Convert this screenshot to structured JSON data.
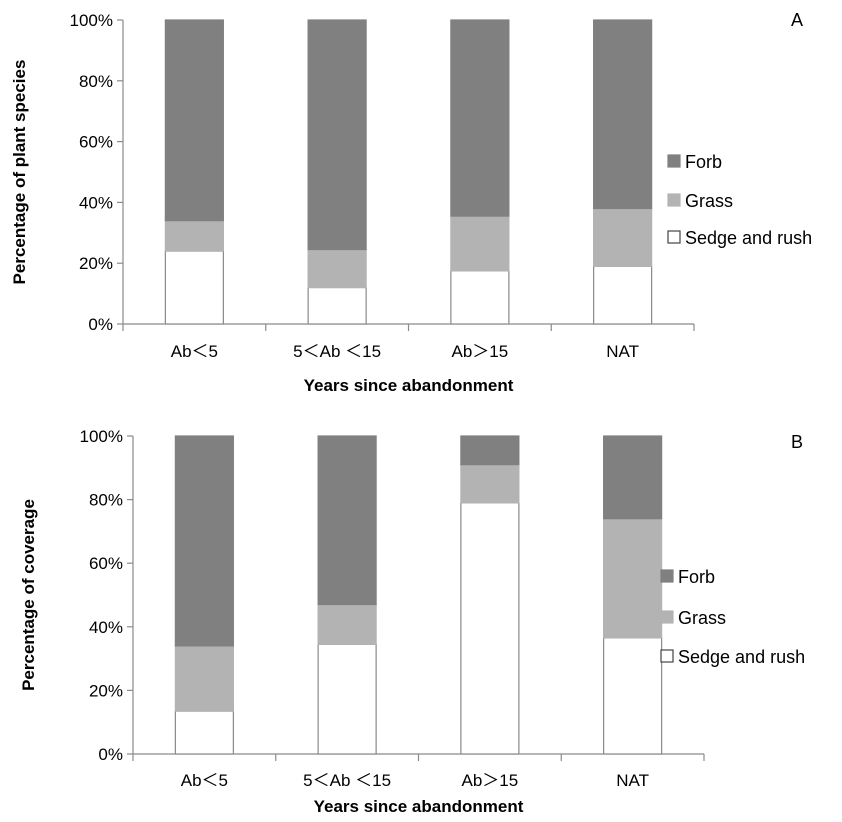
{
  "chart_data": [
    {
      "type": "bar",
      "stacked": true,
      "percent_axis": true,
      "panel_label": "A",
      "categories": [
        "Ab＜5",
        "5＜Ab ＜15",
        "Ab＞15",
        "NAT"
      ],
      "xlabel": "Years since abandonment",
      "ylabel": "Percentage of plant species",
      "ylim": [
        0,
        100
      ],
      "yticks": [
        "0%",
        "20%",
        "40%",
        "60%",
        "80%",
        "100%"
      ],
      "grid": false,
      "legend_position": "right",
      "series": [
        {
          "name": "Sedge and rush",
          "color": "#ffffff",
          "values": [
            24,
            12,
            17.5,
            19
          ]
        },
        {
          "name": "Grass",
          "color": "#b3b3b3",
          "values": [
            10,
            12.5,
            18,
            19
          ]
        },
        {
          "name": "Forb",
          "color": "#808080",
          "values": [
            66,
            75.5,
            64.5,
            62
          ]
        }
      ]
    },
    {
      "type": "bar",
      "stacked": true,
      "percent_axis": true,
      "panel_label": "B",
      "categories": [
        "Ab＜5",
        "5＜Ab ＜15",
        "Ab＞15",
        "NAT"
      ],
      "xlabel": "Years since abandonment",
      "ylabel": "Percentage of coverage",
      "ylim": [
        0,
        100
      ],
      "yticks": [
        "0%",
        "20%",
        "40%",
        "60%",
        "80%",
        "100%"
      ],
      "grid": false,
      "legend_position": "right",
      "series": [
        {
          "name": "Sedge and rush",
          "color": "#ffffff",
          "values": [
            13.5,
            34.5,
            79,
            36.5
          ]
        },
        {
          "name": "Grass",
          "color": "#b3b3b3",
          "values": [
            20.5,
            12.5,
            12,
            37.5
          ]
        },
        {
          "name": "Forb",
          "color": "#808080",
          "values": [
            66,
            53,
            9,
            26
          ]
        }
      ]
    }
  ]
}
